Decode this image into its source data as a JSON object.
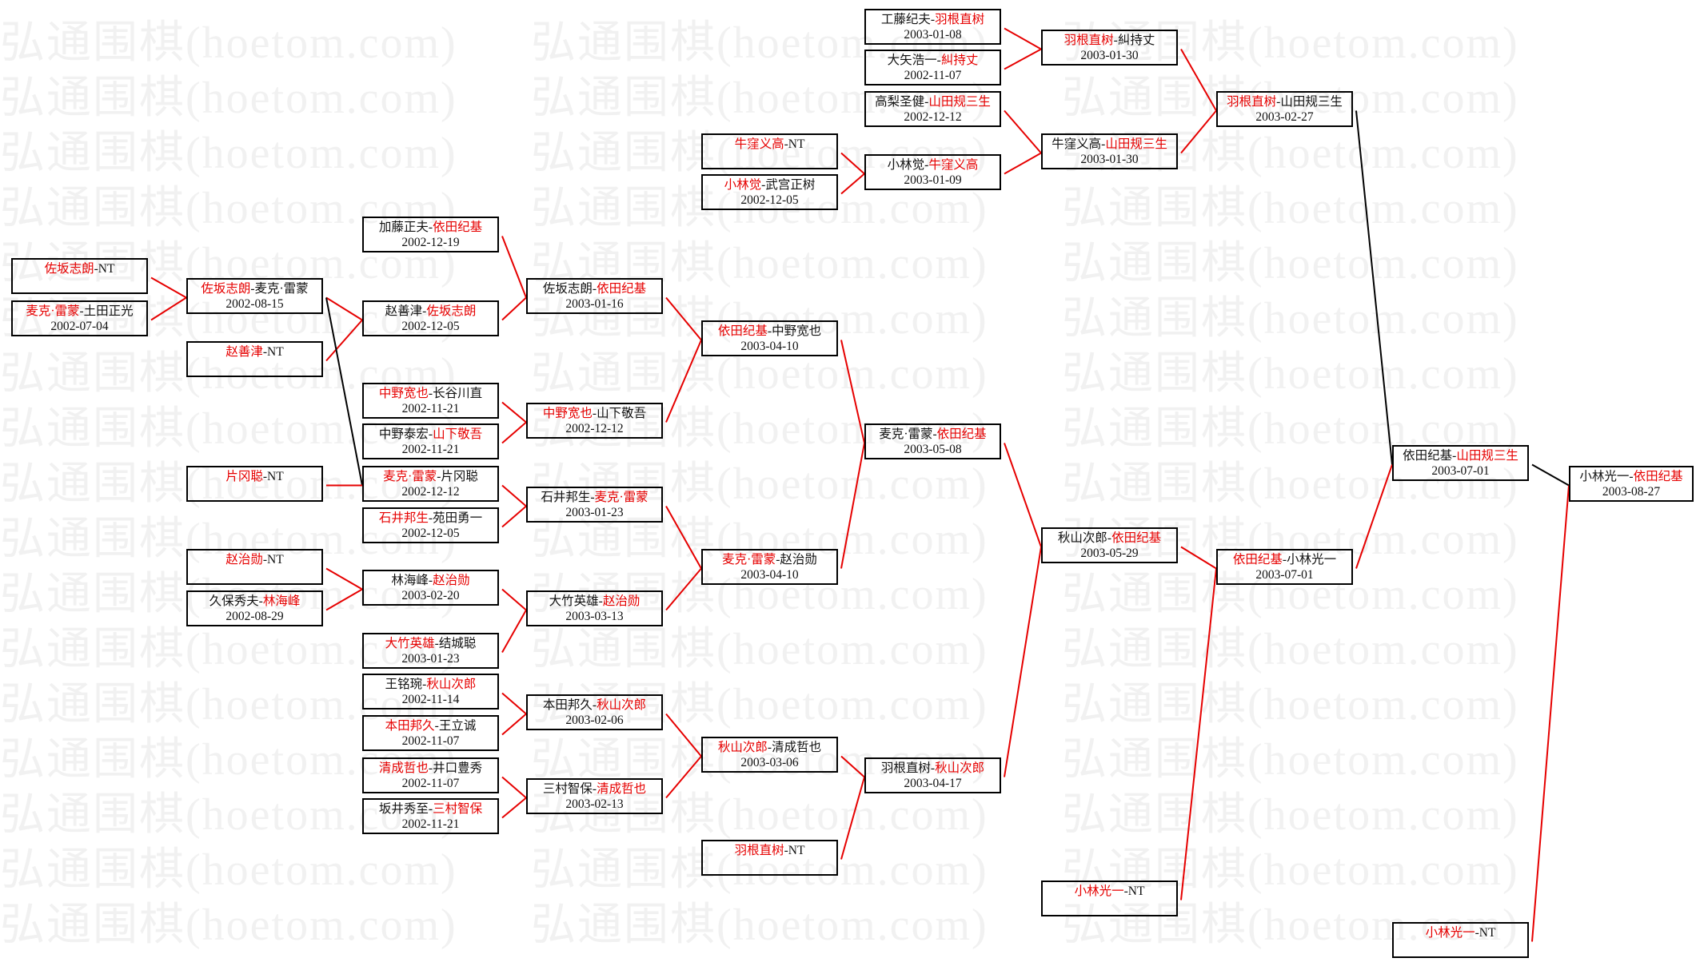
{
  "watermark": "弘通围棋(hoetom.com)",
  "colors": {
    "winner": "#e60000",
    "line_win": "#e60000",
    "line_other": "#000000",
    "box_border": "#000000"
  },
  "bracket": {
    "A1": {
      "parts": [
        {
          "t": "佐坂志朗",
          "win": true
        },
        {
          "t": "-NT"
        }
      ],
      "date": ""
    },
    "A2": {
      "parts": [
        {
          "t": "麦克·雷蒙",
          "win": true
        },
        {
          "t": "-土田正光"
        }
      ],
      "date": "2002-07-04"
    },
    "B1": {
      "parts": [
        {
          "t": "佐坂志朗",
          "win": true
        },
        {
          "t": "-麦克·雷蒙"
        }
      ],
      "date": "2002-08-15"
    },
    "B2": {
      "parts": [
        {
          "t": "赵善津",
          "win": true
        },
        {
          "t": "-NT"
        }
      ],
      "date": ""
    },
    "B3": {
      "parts": [
        {
          "t": "片冈聪",
          "win": true
        },
        {
          "t": "-NT"
        }
      ],
      "date": ""
    },
    "B4": {
      "parts": [
        {
          "t": "赵治勋",
          "win": true
        },
        {
          "t": "-NT"
        }
      ],
      "date": ""
    },
    "B5": {
      "parts": [
        {
          "t": "久保秀夫-"
        },
        {
          "t": "林海峰",
          "win": true
        }
      ],
      "date": "2002-08-29"
    },
    "C1": {
      "parts": [
        {
          "t": "加藤正夫-"
        },
        {
          "t": "依田纪基",
          "win": true
        }
      ],
      "date": "2002-12-19"
    },
    "C2": {
      "parts": [
        {
          "t": "赵善津-"
        },
        {
          "t": "佐坂志朗",
          "win": true
        }
      ],
      "date": "2002-12-05"
    },
    "C3": {
      "parts": [
        {
          "t": "中野宽也",
          "win": true
        },
        {
          "t": "-长谷川直"
        }
      ],
      "date": "2002-11-21"
    },
    "C4": {
      "parts": [
        {
          "t": "中野泰宏-"
        },
        {
          "t": "山下敬吾",
          "win": true
        }
      ],
      "date": "2002-11-21"
    },
    "C5": {
      "parts": [
        {
          "t": "麦克·雷蒙",
          "win": true
        },
        {
          "t": "-片冈聪"
        }
      ],
      "date": "2002-12-12"
    },
    "C6": {
      "parts": [
        {
          "t": "石井邦生",
          "win": true
        },
        {
          "t": "-苑田勇一"
        }
      ],
      "date": "2002-12-05"
    },
    "C7": {
      "parts": [
        {
          "t": "林海峰-"
        },
        {
          "t": "赵治勋",
          "win": true
        }
      ],
      "date": "2003-02-20"
    },
    "C8": {
      "parts": [
        {
          "t": "大竹英雄",
          "win": true
        },
        {
          "t": "-结城聪"
        }
      ],
      "date": "2003-01-23"
    },
    "C9": {
      "parts": [
        {
          "t": "王铭琬-"
        },
        {
          "t": "秋山次郎",
          "win": true
        }
      ],
      "date": "2002-11-14"
    },
    "C10": {
      "parts": [
        {
          "t": "本田邦久",
          "win": true
        },
        {
          "t": "-王立诚"
        }
      ],
      "date": "2002-11-07"
    },
    "C11": {
      "parts": [
        {
          "t": "清成哲也",
          "win": true
        },
        {
          "t": "-井口豊秀"
        }
      ],
      "date": "2002-11-07"
    },
    "C12": {
      "parts": [
        {
          "t": "坂井秀至-"
        },
        {
          "t": "三村智保",
          "win": true
        }
      ],
      "date": "2002-11-21"
    },
    "D1": {
      "parts": [
        {
          "t": "佐坂志朗-"
        },
        {
          "t": "依田纪基",
          "win": true
        }
      ],
      "date": "2003-01-16"
    },
    "D2": {
      "parts": [
        {
          "t": "中野宽也",
          "win": true
        },
        {
          "t": "-山下敬吾"
        }
      ],
      "date": "2002-12-12"
    },
    "D3": {
      "parts": [
        {
          "t": "石井邦生-"
        },
        {
          "t": "麦克·雷蒙",
          "win": true
        }
      ],
      "date": "2003-01-23"
    },
    "D4": {
      "parts": [
        {
          "t": "大竹英雄-"
        },
        {
          "t": "赵治勋",
          "win": true
        }
      ],
      "date": "2003-03-13"
    },
    "D5": {
      "parts": [
        {
          "t": "本田邦久-"
        },
        {
          "t": "秋山次郎",
          "win": true
        }
      ],
      "date": "2003-02-06"
    },
    "D6": {
      "parts": [
        {
          "t": "三村智保-"
        },
        {
          "t": "清成哲也",
          "win": true
        }
      ],
      "date": "2003-02-13"
    },
    "E0a": {
      "parts": [
        {
          "t": "牛窪义高",
          "win": true
        },
        {
          "t": "-NT"
        }
      ],
      "date": ""
    },
    "E0b": {
      "parts": [
        {
          "t": "小林觉",
          "win": true
        },
        {
          "t": "-武宫正树"
        }
      ],
      "date": "2002-12-05"
    },
    "E1": {
      "parts": [
        {
          "t": "依田纪基",
          "win": true
        },
        {
          "t": "-中野宽也"
        }
      ],
      "date": "2003-04-10"
    },
    "E2": {
      "parts": [
        {
          "t": "麦克·雷蒙",
          "win": true
        },
        {
          "t": "-赵治勋"
        }
      ],
      "date": "2003-04-10"
    },
    "E3": {
      "parts": [
        {
          "t": "秋山次郎",
          "win": true
        },
        {
          "t": "-清成哲也"
        }
      ],
      "date": "2003-03-06"
    },
    "E4": {
      "parts": [
        {
          "t": "羽根直树",
          "win": true
        },
        {
          "t": "-NT"
        }
      ],
      "date": ""
    },
    "F1": {
      "parts": [
        {
          "t": "工藤纪夫-"
        },
        {
          "t": "羽根直树",
          "win": true
        }
      ],
      "date": "2003-01-08"
    },
    "F2": {
      "parts": [
        {
          "t": "大矢浩一-"
        },
        {
          "t": "糾持丈",
          "win": true
        }
      ],
      "date": "2002-11-07"
    },
    "F3": {
      "parts": [
        {
          "t": "高梨圣健-"
        },
        {
          "t": "山田规三生",
          "win": true
        }
      ],
      "date": "2002-12-12"
    },
    "F4": {
      "parts": [
        {
          "t": "小林觉-"
        },
        {
          "t": "牛窪义高",
          "win": true
        }
      ],
      "date": "2003-01-09"
    },
    "F5": {
      "parts": [
        {
          "t": "麦克·雷蒙-"
        },
        {
          "t": "依田纪基",
          "win": true
        }
      ],
      "date": "2003-05-08"
    },
    "F6": {
      "parts": [
        {
          "t": "羽根直树-"
        },
        {
          "t": "秋山次郎",
          "win": true
        }
      ],
      "date": "2003-04-17"
    },
    "G1": {
      "parts": [
        {
          "t": "羽根直树",
          "win": true
        },
        {
          "t": "-糾持丈"
        }
      ],
      "date": "2003-01-30"
    },
    "G2": {
      "parts": [
        {
          "t": "牛窪义高-"
        },
        {
          "t": "山田规三生",
          "win": true
        }
      ],
      "date": "2003-01-30"
    },
    "G3": {
      "parts": [
        {
          "t": "秋山次郎-"
        },
        {
          "t": "依田纪基",
          "win": true
        }
      ],
      "date": "2003-05-29"
    },
    "G4": {
      "parts": [
        {
          "t": "小林光一",
          "win": true
        },
        {
          "t": "-NT"
        }
      ],
      "date": ""
    },
    "H1": {
      "parts": [
        {
          "t": "羽根直树",
          "win": true
        },
        {
          "t": "-山田规三生"
        }
      ],
      "date": "2003-02-27"
    },
    "H2": {
      "parts": [
        {
          "t": "依田纪基",
          "win": true
        },
        {
          "t": "-小林光一"
        }
      ],
      "date": "2003-07-01"
    },
    "I1": {
      "parts": [
        {
          "t": "依田纪基-"
        },
        {
          "t": "山田规三生",
          "win": true
        }
      ],
      "date": "2003-07-01"
    },
    "I2": {
      "parts": [
        {
          "t": "小林光一",
          "win": true
        },
        {
          "t": "-NT"
        }
      ],
      "date": ""
    },
    "J1": {
      "parts": [
        {
          "t": "小林光一-"
        },
        {
          "t": "依田纪基",
          "win": true
        }
      ],
      "date": "2003-08-27"
    }
  }
}
